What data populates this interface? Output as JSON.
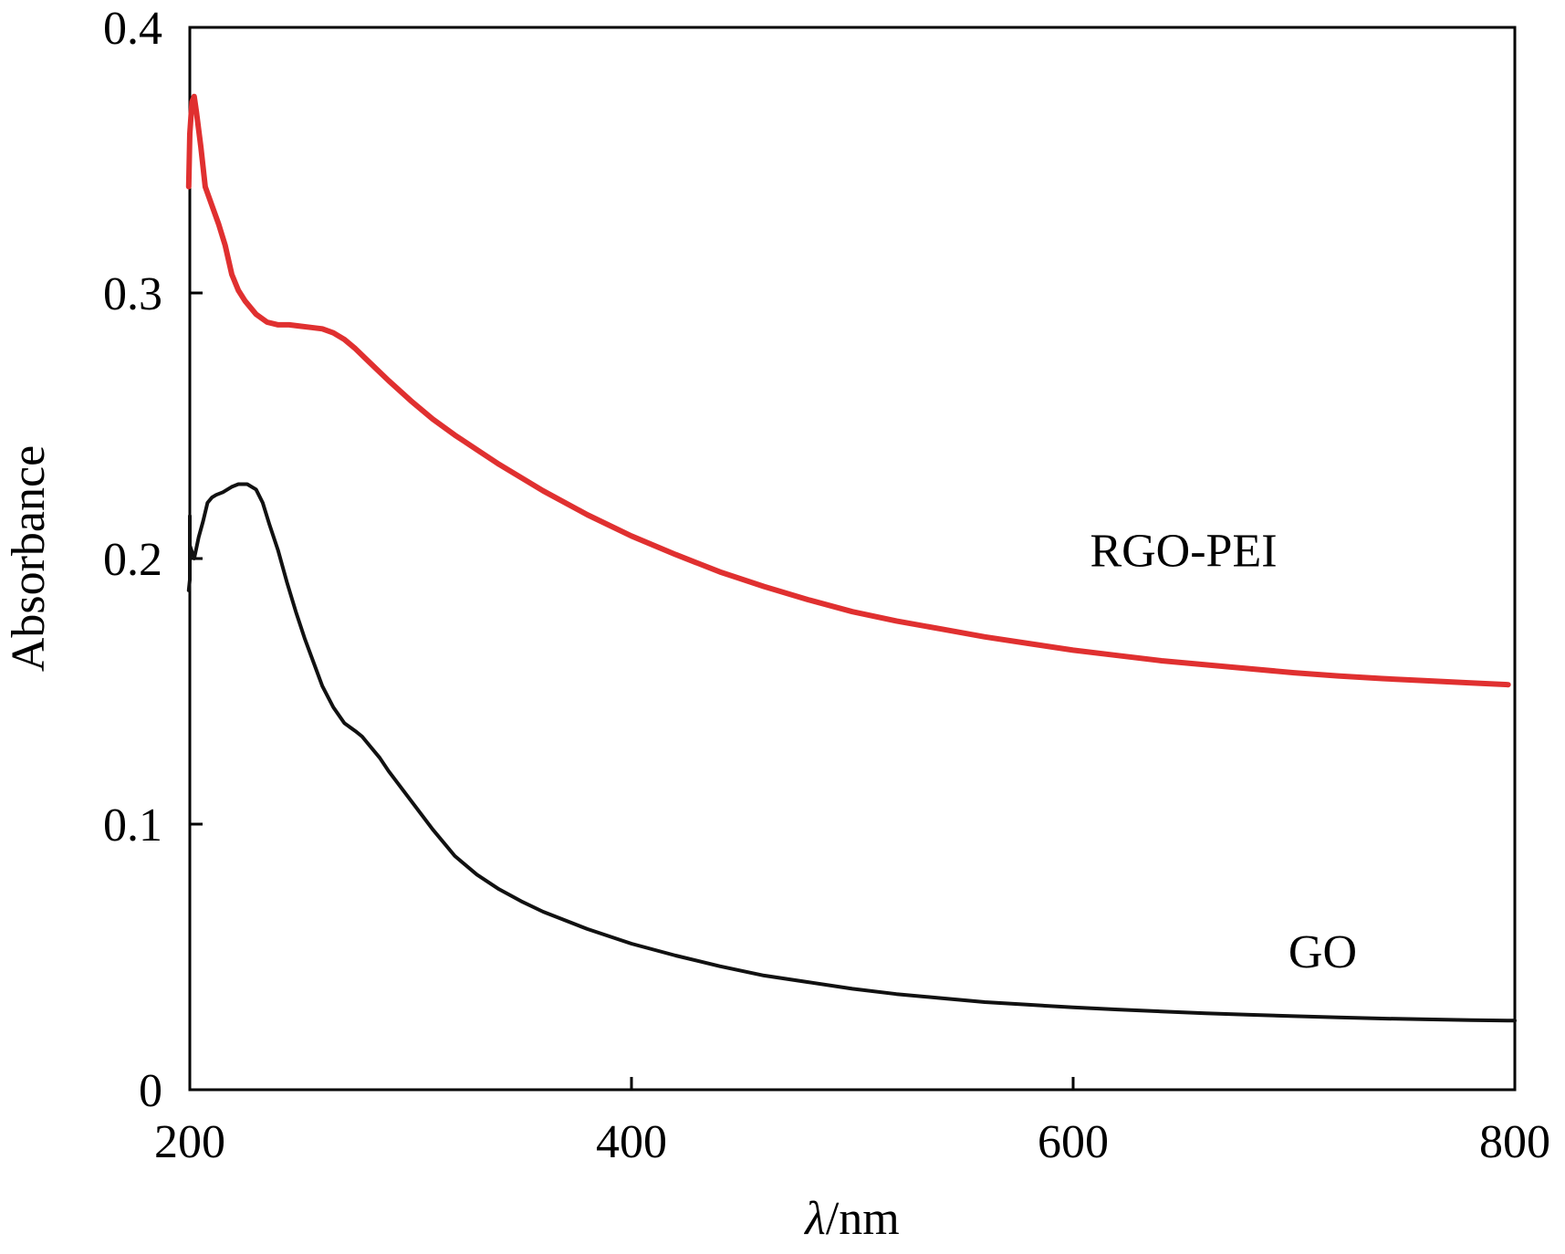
{
  "chart_data": {
    "type": "line",
    "title": "",
    "xlabel": {
      "symbol": "λ",
      "unit": "/nm"
    },
    "ylabel": "Absorbance",
    "xlim": [
      200,
      800
    ],
    "ylim": [
      0,
      0.4
    ],
    "xticks": [
      200,
      400,
      600,
      800
    ],
    "xtick_labels": [
      "200",
      "400",
      "600",
      "800"
    ],
    "yticks": [
      0,
      0.1,
      0.2,
      0.3,
      0.4
    ],
    "ytick_labels": [
      "0",
      "0.1",
      "0.2",
      "0.3",
      "0.4"
    ],
    "grid": false,
    "legend": "inline-labels",
    "series": [
      {
        "name": "RGO-PEI",
        "color": "#e03030",
        "label_at": [
          650,
          0.197
        ],
        "x": [
          199.5,
          200,
          201,
          202,
          203,
          205,
          207,
          210,
          213,
          216,
          219,
          222,
          225,
          230,
          235,
          240,
          245,
          250,
          255,
          260,
          265,
          270,
          275,
          280,
          285,
          290,
          300,
          310,
          320,
          330,
          340,
          360,
          380,
          400,
          420,
          440,
          460,
          480,
          500,
          520,
          540,
          560,
          580,
          600,
          620,
          640,
          660,
          680,
          700,
          720,
          740,
          760,
          780,
          797
        ],
        "y": [
          0.34,
          0.36,
          0.372,
          0.374,
          0.368,
          0.355,
          0.34,
          0.333,
          0.326,
          0.318,
          0.307,
          0.301,
          0.297,
          0.292,
          0.289,
          0.288,
          0.288,
          0.2875,
          0.287,
          0.2865,
          0.285,
          0.2825,
          0.279,
          0.275,
          0.271,
          0.267,
          0.2595,
          0.2525,
          0.2465,
          0.241,
          0.2355,
          0.2255,
          0.2165,
          0.2085,
          0.2015,
          0.195,
          0.1895,
          0.1845,
          0.18,
          0.1765,
          0.1735,
          0.1705,
          0.168,
          0.1655,
          0.1635,
          0.1615,
          0.16,
          0.1585,
          0.157,
          0.1558,
          0.1548,
          0.154,
          0.1532,
          0.1525
        ]
      },
      {
        "name": "GO",
        "color": "#111111",
        "label_at": [
          713,
          0.046
        ],
        "x": [
          199.5,
          200,
          200,
          200,
          202,
          204,
          206,
          208,
          210,
          212,
          215,
          219,
          222,
          226,
          230,
          233,
          236,
          240,
          244,
          248,
          252,
          256,
          260,
          265,
          270,
          275,
          278,
          282,
          286,
          290,
          295,
          300,
          310,
          320,
          330,
          340,
          350,
          360,
          380,
          400,
          420,
          440,
          460,
          480,
          500,
          520,
          540,
          560,
          580,
          600,
          620,
          640,
          660,
          680,
          700,
          720,
          740,
          760,
          780,
          800
        ],
        "y": [
          0.188,
          0.192,
          0.216,
          0.205,
          0.2,
          0.208,
          0.214,
          0.221,
          0.223,
          0.224,
          0.225,
          0.227,
          0.228,
          0.228,
          0.226,
          0.221,
          0.213,
          0.203,
          0.191,
          0.18,
          0.17,
          0.161,
          0.152,
          0.144,
          0.138,
          0.135,
          0.133,
          0.129,
          0.125,
          0.12,
          0.1145,
          0.109,
          0.098,
          0.088,
          0.081,
          0.0755,
          0.071,
          0.067,
          0.0605,
          0.055,
          0.0505,
          0.0465,
          0.043,
          0.0405,
          0.038,
          0.036,
          0.0345,
          0.033,
          0.032,
          0.031,
          0.0302,
          0.0295,
          0.0288,
          0.0282,
          0.0277,
          0.0272,
          0.0268,
          0.0265,
          0.0262,
          0.026
        ]
      }
    ]
  }
}
